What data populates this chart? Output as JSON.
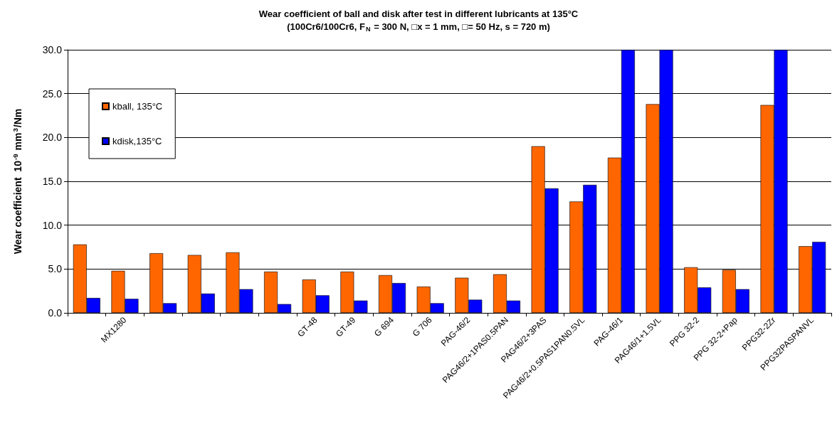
{
  "chart_data": {
    "type": "bar",
    "title": "Wear coefficient of ball and disk after test in different lubricants at 135°C",
    "subtitle": "(100Cr6/100Cr6, F$_{N}$ = 300 N, □x = 1 mm, □= 50 Hz, s = 720 m)",
    "ylabel": "Wear coefficient  10$^{-9}$ mm$^{3}$/Nm",
    "categories": [
      null,
      "MX1280",
      null,
      null,
      null,
      null,
      "GT-48",
      "GT-49",
      "G 694",
      "G 706",
      "PAG-46/2",
      "PAG46/2+1PAS0.5PAN",
      "PAG46/2+3PAS",
      "PAG46/2+0.5PAS1PAN0.5VL",
      "PAG-46/1",
      "PAG46/1+1.5VL",
      "PPG 32-2",
      "PPG 32-2+Pap",
      "PPG32-2Zr",
      "PPG32PASPANVL"
    ],
    "series": [
      {
        "name": "kball, 135°C",
        "color": "#ff6600",
        "values": [
          7.8,
          4.8,
          6.8,
          6.6,
          6.9,
          4.7,
          3.8,
          4.7,
          4.3,
          3.0,
          4.0,
          4.4,
          19.0,
          12.7,
          17.7,
          23.8,
          5.2,
          4.9,
          23.7,
          7.6
        ]
      },
      {
        "name": "kdisk,135°C",
        "color": "#0000ff",
        "values": [
          1.7,
          1.6,
          1.1,
          2.2,
          2.7,
          1.0,
          2.0,
          1.4,
          3.4,
          1.1,
          1.5,
          1.4,
          14.2,
          14.6,
          30.0,
          30.0,
          2.9,
          2.7,
          30.0,
          8.1
        ]
      }
    ],
    "ylim": [
      0,
      30
    ],
    "yticks": [
      {
        "value": 0,
        "label": "0.0"
      },
      {
        "value": 5,
        "label": "5.0"
      },
      {
        "value": 10,
        "label": "10.0"
      },
      {
        "value": 15,
        "label": "15.0"
      },
      {
        "value": 20,
        "label": "20.0"
      },
      {
        "value": 25,
        "label": "25.0"
      },
      {
        "value": 30,
        "label": "30.0"
      }
    ],
    "grid": "y",
    "legend": "top left"
  }
}
